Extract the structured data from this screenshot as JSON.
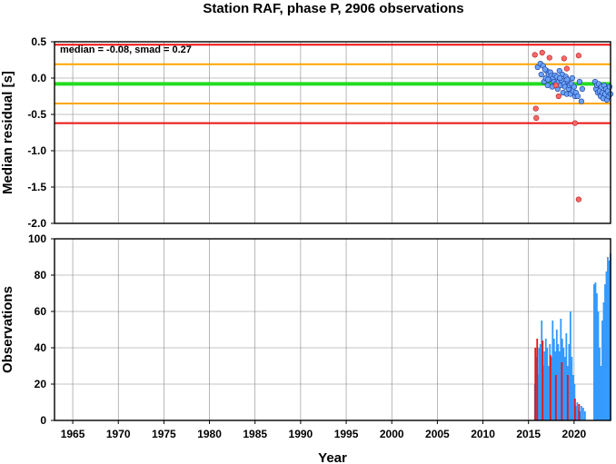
{
  "figure": {
    "title": "Station RAF, phase P, 2906 observations",
    "xlabel": "Year"
  },
  "chart_data": [
    {
      "type": "scatter",
      "ylabel": "Median residual [s]",
      "annotation": "median = -0.08, smad = 0.27",
      "xlim": [
        1963,
        2024
      ],
      "ylim": [
        -2.0,
        0.5
      ],
      "yticks": [
        0.5,
        0.0,
        -0.5,
        -1.0,
        -1.5,
        -2.0
      ],
      "ytick_labels": [
        "0.5",
        "0.0",
        "-0.5",
        "-1.0",
        "-1.5",
        "-2.0"
      ],
      "grid": true,
      "reference_lines": [
        {
          "name": "median",
          "y": -0.08,
          "color": "#22dd22"
        },
        {
          "name": "upper 1",
          "y": 0.19,
          "color": "#ffa500"
        },
        {
          "name": "lower 1",
          "y": -0.35,
          "color": "#ffa500"
        },
        {
          "name": "upper 2",
          "y": 0.46,
          "color": "#ee1111"
        },
        {
          "name": "lower 2",
          "y": -0.62,
          "color": "#ee1111"
        }
      ],
      "series": [
        {
          "color": "#6aa3ff",
          "points": [
            [
              2016.0,
              0.15
            ],
            [
              2016.3,
              0.2
            ],
            [
              2016.4,
              0.05
            ],
            [
              2016.6,
              0.17
            ],
            [
              2016.7,
              -0.05
            ],
            [
              2016.9,
              0.0
            ],
            [
              2017.0,
              0.1
            ],
            [
              2017.1,
              -0.1
            ],
            [
              2017.2,
              0.05
            ],
            [
              2017.3,
              -0.02
            ],
            [
              2017.4,
              0.08
            ],
            [
              2017.5,
              0.03
            ],
            [
              2017.6,
              -0.12
            ],
            [
              2017.7,
              0.0
            ],
            [
              2017.8,
              -0.05
            ],
            [
              2017.9,
              0.04
            ],
            [
              2018.0,
              -0.08
            ],
            [
              2018.1,
              0.02
            ],
            [
              2018.2,
              -0.15
            ],
            [
              2018.3,
              -0.05
            ],
            [
              2018.4,
              0.1
            ],
            [
              2018.5,
              -0.1
            ],
            [
              2018.6,
              -0.03
            ],
            [
              2018.7,
              0.05
            ],
            [
              2018.8,
              -0.2
            ],
            [
              2018.9,
              -0.08
            ],
            [
              2019.0,
              -0.12
            ],
            [
              2019.1,
              0.02
            ],
            [
              2019.2,
              -0.22
            ],
            [
              2019.3,
              -0.05
            ],
            [
              2019.4,
              -0.15
            ],
            [
              2019.5,
              -0.1
            ],
            [
              2019.6,
              -0.22
            ],
            [
              2019.7,
              -0.08
            ],
            [
              2019.8,
              0.0
            ],
            [
              2019.9,
              -0.18
            ],
            [
              2020.0,
              -0.12
            ],
            [
              2020.1,
              -0.25
            ],
            [
              2020.2,
              -0.2
            ],
            [
              2020.4,
              -0.25
            ],
            [
              2020.6,
              -0.05
            ],
            [
              2020.8,
              -0.32
            ],
            [
              2020.9,
              -0.15
            ],
            [
              2016.8,
              0.12
            ],
            [
              2017.15,
              -0.02
            ],
            [
              2018.45,
              0.0
            ],
            [
              2019.25,
              -0.02
            ],
            [
              2022.3,
              -0.05
            ],
            [
              2022.4,
              -0.15
            ],
            [
              2022.5,
              -0.1
            ],
            [
              2022.6,
              -0.2
            ],
            [
              2022.7,
              -0.08
            ],
            [
              2022.8,
              -0.18
            ],
            [
              2022.9,
              -0.25
            ],
            [
              2023.0,
              -0.12
            ],
            [
              2023.1,
              -0.2
            ],
            [
              2023.2,
              -0.28
            ],
            [
              2023.3,
              -0.1
            ],
            [
              2023.4,
              -0.22
            ],
            [
              2023.5,
              -0.15
            ],
            [
              2023.6,
              -0.3
            ],
            [
              2023.7,
              -0.18
            ],
            [
              2023.8,
              -0.25
            ],
            [
              2023.9,
              -0.12
            ],
            [
              2024.0,
              -0.22
            ]
          ]
        },
        {
          "color": "#ff6666",
          "points": [
            [
              2015.7,
              0.32
            ],
            [
              2015.8,
              -0.42
            ],
            [
              2015.85,
              -0.55
            ],
            [
              2016.5,
              0.35
            ],
            [
              2017.3,
              0.28
            ],
            [
              2018.0,
              -0.1
            ],
            [
              2018.3,
              -0.25
            ],
            [
              2018.9,
              0.27
            ],
            [
              2019.2,
              0.13
            ],
            [
              2020.1,
              -0.62
            ],
            [
              2020.5,
              0.31
            ],
            [
              2020.5,
              -1.67
            ]
          ]
        }
      ]
    },
    {
      "type": "bar",
      "ylabel": "Observations",
      "xlim": [
        1963,
        2024
      ],
      "ylim": [
        0,
        100
      ],
      "yticks": [
        0,
        20,
        40,
        60,
        80,
        100
      ],
      "ytick_labels": [
        "0",
        "20",
        "40",
        "60",
        "80",
        "100"
      ],
      "xticks": [
        1965,
        1970,
        1975,
        1980,
        1985,
        1990,
        1995,
        2000,
        2005,
        2010,
        2015,
        2020
      ],
      "xtick_labels": [
        "1965",
        "1970",
        "1975",
        "1980",
        "1985",
        "1990",
        "1995",
        "2000",
        "2005",
        "2010",
        "2015",
        "2020"
      ],
      "grid": true,
      "series": [
        {
          "color": "#3399ff",
          "bars": [
            [
              2015.7,
              20
            ],
            [
              2015.85,
              35
            ],
            [
              2016.0,
              25
            ],
            [
              2016.15,
              40
            ],
            [
              2016.3,
              42
            ],
            [
              2016.45,
              55
            ],
            [
              2016.6,
              30
            ],
            [
              2016.75,
              38
            ],
            [
              2016.9,
              45
            ],
            [
              2017.05,
              40
            ],
            [
              2017.2,
              30
            ],
            [
              2017.35,
              42
            ],
            [
              2017.5,
              35
            ],
            [
              2017.65,
              55
            ],
            [
              2017.8,
              45
            ],
            [
              2017.95,
              38
            ],
            [
              2018.1,
              50
            ],
            [
              2018.25,
              42
            ],
            [
              2018.4,
              38
            ],
            [
              2018.55,
              56
            ],
            [
              2018.7,
              45
            ],
            [
              2018.85,
              40
            ],
            [
              2019.0,
              35
            ],
            [
              2019.15,
              48
            ],
            [
              2019.3,
              30
            ],
            [
              2019.45,
              42
            ],
            [
              2019.6,
              60
            ],
            [
              2019.75,
              35
            ],
            [
              2019.9,
              25
            ],
            [
              2020.05,
              20
            ],
            [
              2020.2,
              8
            ],
            [
              2020.35,
              10
            ],
            [
              2020.5,
              6
            ],
            [
              2020.65,
              5
            ],
            [
              2020.8,
              8
            ],
            [
              2021.0,
              7
            ],
            [
              2021.2,
              5
            ],
            [
              2022.2,
              75
            ],
            [
              2022.35,
              76
            ],
            [
              2022.5,
              70
            ],
            [
              2022.65,
              60
            ],
            [
              2022.8,
              40
            ],
            [
              2022.95,
              30
            ],
            [
              2023.1,
              55
            ],
            [
              2023.25,
              65
            ],
            [
              2023.4,
              75
            ],
            [
              2023.55,
              82
            ],
            [
              2023.7,
              90
            ],
            [
              2023.85,
              88
            ],
            [
              2024.0,
              92
            ]
          ]
        },
        {
          "color": "#ee1111",
          "bars": [
            [
              2015.75,
              40
            ],
            [
              2015.95,
              45
            ],
            [
              2016.55,
              44
            ],
            [
              2017.4,
              36
            ],
            [
              2018.0,
              25
            ],
            [
              2018.65,
              32
            ],
            [
              2019.3,
              25
            ],
            [
              2020.1,
              12
            ],
            [
              2020.55,
              9
            ]
          ]
        }
      ]
    }
  ]
}
